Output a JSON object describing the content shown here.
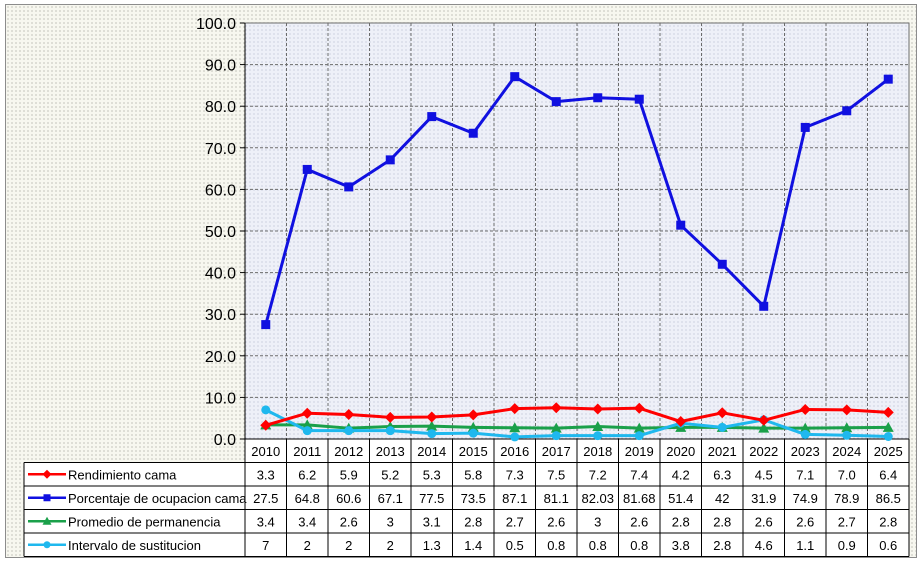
{
  "chart_data": {
    "type": "line",
    "title": "",
    "xlabel": "",
    "ylabel": "",
    "ylim": [
      0,
      100
    ],
    "yticks": [
      "0.0",
      "10.0",
      "20.0",
      "30.0",
      "40.0",
      "50.0",
      "60.0",
      "70.0",
      "80.0",
      "90.0",
      "100.0"
    ],
    "grid": true,
    "legend_placement": "data-table-left",
    "categories": [
      "2010",
      "2011",
      "2012",
      "2013",
      "2014",
      "2015",
      "2016",
      "2017",
      "2018",
      "2019",
      "2020",
      "2021",
      "2022",
      "2023",
      "2024",
      "2025"
    ],
    "series": [
      {
        "name": "Rendimiento cama",
        "color": "#ff0000",
        "marker": "diamond",
        "values": [
          3.3,
          6.2,
          5.9,
          5.2,
          5.3,
          5.8,
          7.3,
          7.5,
          7.2,
          7.4,
          4.2,
          6.3,
          4.5,
          7.1,
          7.0,
          6.4
        ],
        "labels": [
          "3.3",
          "6.2",
          "5.9",
          "5.2",
          "5.3",
          "5.8",
          "7.3",
          "7.5",
          "7.2",
          "7.4",
          "4.2",
          "6.3",
          "4.5",
          "7.1",
          "7.0",
          "6.4"
        ]
      },
      {
        "name": "Porcentaje de ocupacion cama",
        "color": "#1010e0",
        "marker": "square",
        "values": [
          27.5,
          64.8,
          60.6,
          67.1,
          77.5,
          73.5,
          87.1,
          81.1,
          82.03,
          81.68,
          51.4,
          42,
          31.9,
          74.9,
          78.9,
          86.5
        ],
        "labels": [
          "27.5",
          "64.8",
          "60.6",
          "67.1",
          "77.5",
          "73.5",
          "87.1",
          "81.1",
          "82.03",
          "81.68",
          "51.4",
          "42",
          "31.9",
          "74.9",
          "78.9",
          "86.5"
        ]
      },
      {
        "name": "Promedio de permanencia",
        "color": "#1aa04a",
        "marker": "triangle",
        "values": [
          3.4,
          3.4,
          2.6,
          3,
          3.1,
          2.8,
          2.7,
          2.6,
          3,
          2.6,
          2.8,
          2.8,
          2.6,
          2.6,
          2.7,
          2.8
        ],
        "labels": [
          "3.4",
          "3.4",
          "2.6",
          "3",
          "3.1",
          "2.8",
          "2.7",
          "2.6",
          "3",
          "2.6",
          "2.8",
          "2.8",
          "2.6",
          "2.6",
          "2.7",
          "2.8"
        ]
      },
      {
        "name": "Intervalo de sustitucion",
        "color": "#1fb8ee",
        "marker": "circle",
        "values": [
          7,
          2,
          2,
          2,
          1.3,
          1.4,
          0.5,
          0.8,
          0.8,
          0.8,
          3.8,
          2.8,
          4.6,
          1.1,
          0.9,
          0.6
        ],
        "labels": [
          "7",
          "2",
          "2",
          "2",
          "1.3",
          "1.4",
          "0.5",
          "0.8",
          "0.8",
          "0.8",
          "3.8",
          "2.8",
          "4.6",
          "1.1",
          "0.9",
          "0.6"
        ]
      }
    ]
  }
}
